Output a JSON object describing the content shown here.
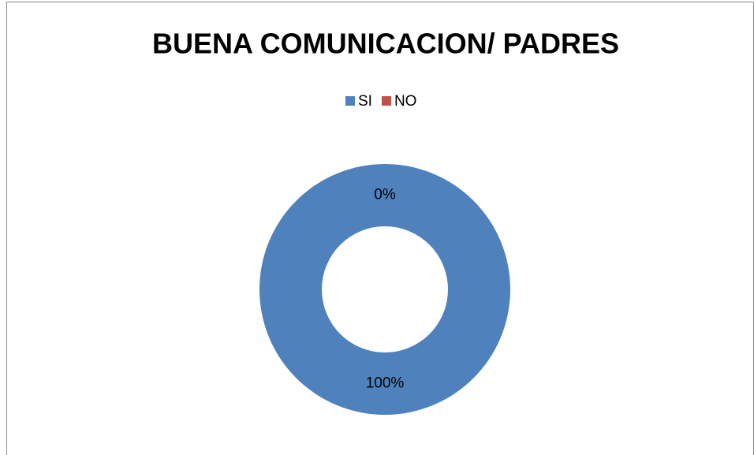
{
  "chart_data": {
    "type": "donut",
    "title": "BUENA COMUNICACION/ PADRES",
    "categories": [
      "SI",
      "NO"
    ],
    "values": [
      100,
      0
    ],
    "value_labels": [
      "100%",
      "0%"
    ],
    "colors": [
      "#4f81bd",
      "#c0504d"
    ],
    "legend": "top"
  }
}
